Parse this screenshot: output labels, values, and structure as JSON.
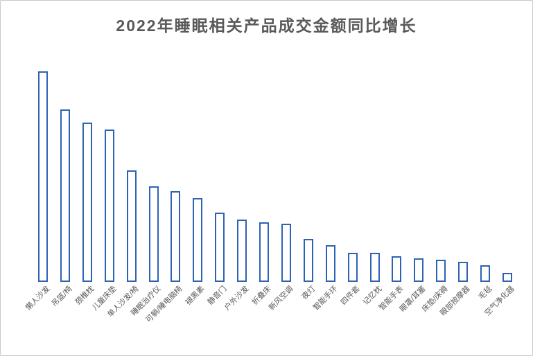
{
  "window": {
    "background": "#ffffff",
    "border_color": "#c9c9c9"
  },
  "chart_data": {
    "type": "bar",
    "title": "2022年睡眠相关产品成交金额同比增长",
    "categories": [
      "懒人沙发",
      "吊篮/椅",
      "颈椎枕",
      "儿童床垫",
      "单人沙发/椅",
      "睡眠治疗仪",
      "可躺/睡电脑椅",
      "褪黑素",
      "静音门",
      "户外沙发",
      "折叠床",
      "新风空调",
      "夜灯",
      "智能手环",
      "四件套",
      "记忆枕",
      "智能手表",
      "眼罩/耳塞",
      "床垫/床褥",
      "眼部按摩器",
      "毛毯",
      "空气净化器"
    ],
    "values": [
      100.0,
      81.9,
      75.7,
      72.4,
      53.0,
      45.4,
      43.1,
      39.8,
      32.9,
      29.6,
      28.3,
      27.6,
      20.4,
      17.4,
      13.8,
      13.8,
      12.2,
      11.2,
      10.5,
      9.5,
      7.9,
      4.3
    ],
    "value_note": "no y-axis, gridlines or data labels shown in image; values are relative bar heights normalized to tallest bar = 100",
    "xlabel": "",
    "ylabel": "",
    "ylim": [
      0,
      100
    ],
    "grid": false,
    "legend": false,
    "axis_lines_visible": false,
    "colors": {
      "bar_fill": "#ffffff",
      "bar_border": "#2E63B4",
      "title_text": "#595959",
      "axis_label_text": "#595959"
    }
  }
}
